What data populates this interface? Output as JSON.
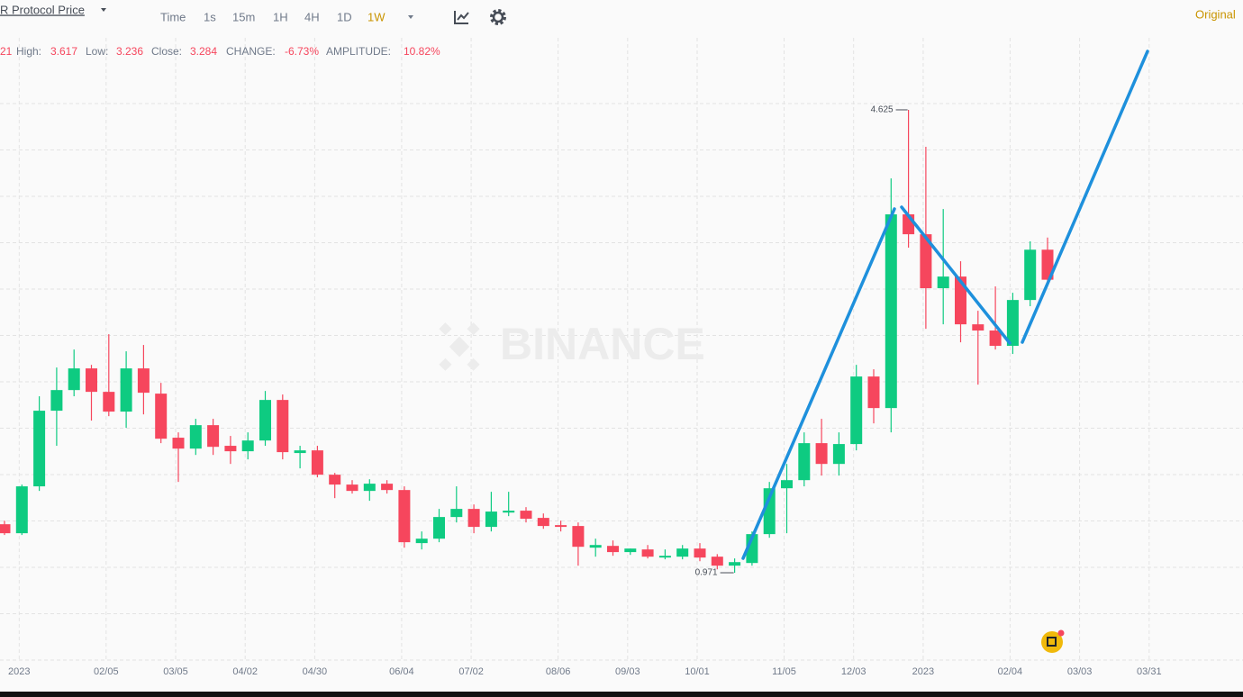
{
  "toolbar": {
    "title": "R Protocol Price",
    "intervals": [
      "Time",
      "1s",
      "15m",
      "1H",
      "4H",
      "1D",
      "1W"
    ],
    "active": "1W",
    "view": "Original"
  },
  "info": {
    "open_fragment": "21",
    "high_label": "High:",
    "low_label": "Low:",
    "close_label": "Close:",
    "change_label": "CHANGE:",
    "change": "-6.73%",
    "amplitude_label": "AMPLITUDE:",
    "amplitude": "10.82%"
  },
  "watermark": "BINANCE",
  "chart_data": {
    "type": "candlestick",
    "categories": [
      null,
      "2023",
      null,
      null,
      null,
      null,
      "02/05",
      null,
      null,
      null,
      "03/05",
      null,
      null,
      null,
      "04/02",
      null,
      null,
      null,
      "04/30",
      null,
      null,
      null,
      null,
      "06/04",
      null,
      null,
      null,
      "07/02",
      null,
      null,
      null,
      null,
      "08/06",
      null,
      null,
      null,
      "09/03",
      null,
      null,
      null,
      "10/01",
      null,
      null,
      null,
      null,
      "11/05",
      null,
      null,
      null,
      "12/03",
      null,
      null,
      null,
      "2023",
      null,
      null,
      null,
      null,
      "02/04",
      null,
      null,
      null,
      "03/03",
      null,
      null,
      null,
      "03/31",
      null,
      null,
      null,
      null
    ],
    "open": [
      1.354,
      1.283,
      1.653,
      2.25,
      2.413,
      2.584,
      2.399,
      2.243,
      2.584,
      2.385,
      2.037,
      1.951,
      2.136,
      1.973,
      1.93,
      2.015,
      2.335,
      1.916,
      1.937,
      1.745,
      1.667,
      1.617,
      1.674,
      1.624,
      1.205,
      1.24,
      1.411,
      1.475,
      1.333,
      1.446,
      1.461,
      1.404,
      1.347,
      1.34,
      1.169,
      1.183,
      1.134,
      1.155,
      1.091,
      1.098,
      1.162,
      1.098,
      1.027,
      1.048,
      1.276,
      1.638,
      1.702,
      1.994,
      1.83,
      1.987,
      2.52,
      2.271,
      3.8,
      3.643,
      3.217,
      3.309,
      2.932,
      2.883,
      2.762,
      3.124,
      3.521,
      null,
      null,
      null,
      null,
      null,
      null,
      null,
      null,
      null,
      null
    ],
    "high": [
      1.382,
      1.667,
      2.364,
      2.591,
      2.733,
      2.612,
      2.854,
      2.719,
      2.769,
      2.47,
      2.079,
      2.186,
      2.186,
      2.051,
      2.079,
      2.406,
      2.378,
      1.973,
      1.973,
      1.759,
      1.702,
      1.709,
      1.702,
      1.653,
      1.297,
      1.475,
      1.653,
      1.51,
      1.61,
      1.61,
      1.489,
      1.439,
      1.382,
      1.368,
      1.24,
      1.226,
      1.162,
      1.19,
      1.155,
      1.19,
      1.205,
      1.118,
      1.084,
      1.297,
      1.688,
      1.83,
      2.079,
      2.186,
      2.079,
      2.612,
      2.577,
      4.084,
      4.625,
      4.333,
      3.842,
      3.43,
      3.039,
      3.231,
      3.181,
      3.587,
      3.617,
      null,
      null,
      null,
      null,
      null,
      null,
      null,
      null,
      null,
      null
    ],
    "low": [
      1.269,
      1.269,
      1.617,
      1.973,
      2.364,
      2.172,
      2.207,
      2.115,
      2.221,
      1.994,
      1.688,
      1.901,
      1.901,
      1.83,
      1.866,
      1.973,
      1.866,
      1.795,
      1.724,
      1.56,
      1.596,
      1.539,
      1.596,
      1.169,
      1.155,
      1.212,
      1.368,
      1.283,
      1.297,
      1.418,
      1.368,
      1.318,
      1.297,
      1.027,
      1.098,
      1.105,
      1.112,
      1.084,
      1.077,
      1.077,
      1.062,
      0.998,
      0.971,
      1.027,
      1.247,
      1.283,
      1.653,
      1.738,
      1.738,
      1.937,
      2.15,
      2.079,
      3.537,
      2.897,
      2.932,
      2.79,
      2.456,
      2.733,
      2.698,
      3.075,
      3.236,
      null,
      null,
      null,
      null,
      null,
      null,
      null,
      null,
      null,
      null
    ],
    "close": [
      1.283,
      1.653,
      2.25,
      2.413,
      2.584,
      2.399,
      2.243,
      2.584,
      2.392,
      2.029,
      1.951,
      2.136,
      1.965,
      1.93,
      2.015,
      2.335,
      1.923,
      1.937,
      1.745,
      1.667,
      1.617,
      1.674,
      1.624,
      1.212,
      1.24,
      1.411,
      1.475,
      1.333,
      1.454,
      1.461,
      1.397,
      1.34,
      1.333,
      1.176,
      1.19,
      1.134,
      1.162,
      1.098,
      1.105,
      1.162,
      1.091,
      1.027,
      1.055,
      1.276,
      1.638,
      1.702,
      1.994,
      1.83,
      1.987,
      2.52,
      2.271,
      3.8,
      3.643,
      3.217,
      3.309,
      2.932,
      2.883,
      2.762,
      3.124,
      3.521,
      3.284,
      null,
      null,
      null,
      null,
      null,
      null,
      null,
      null,
      null,
      null
    ],
    "ylim": [
      0.303,
      5.492
    ],
    "up_color": "#0ecb81",
    "down_color": "#f6465d",
    "grid": true
  }
}
